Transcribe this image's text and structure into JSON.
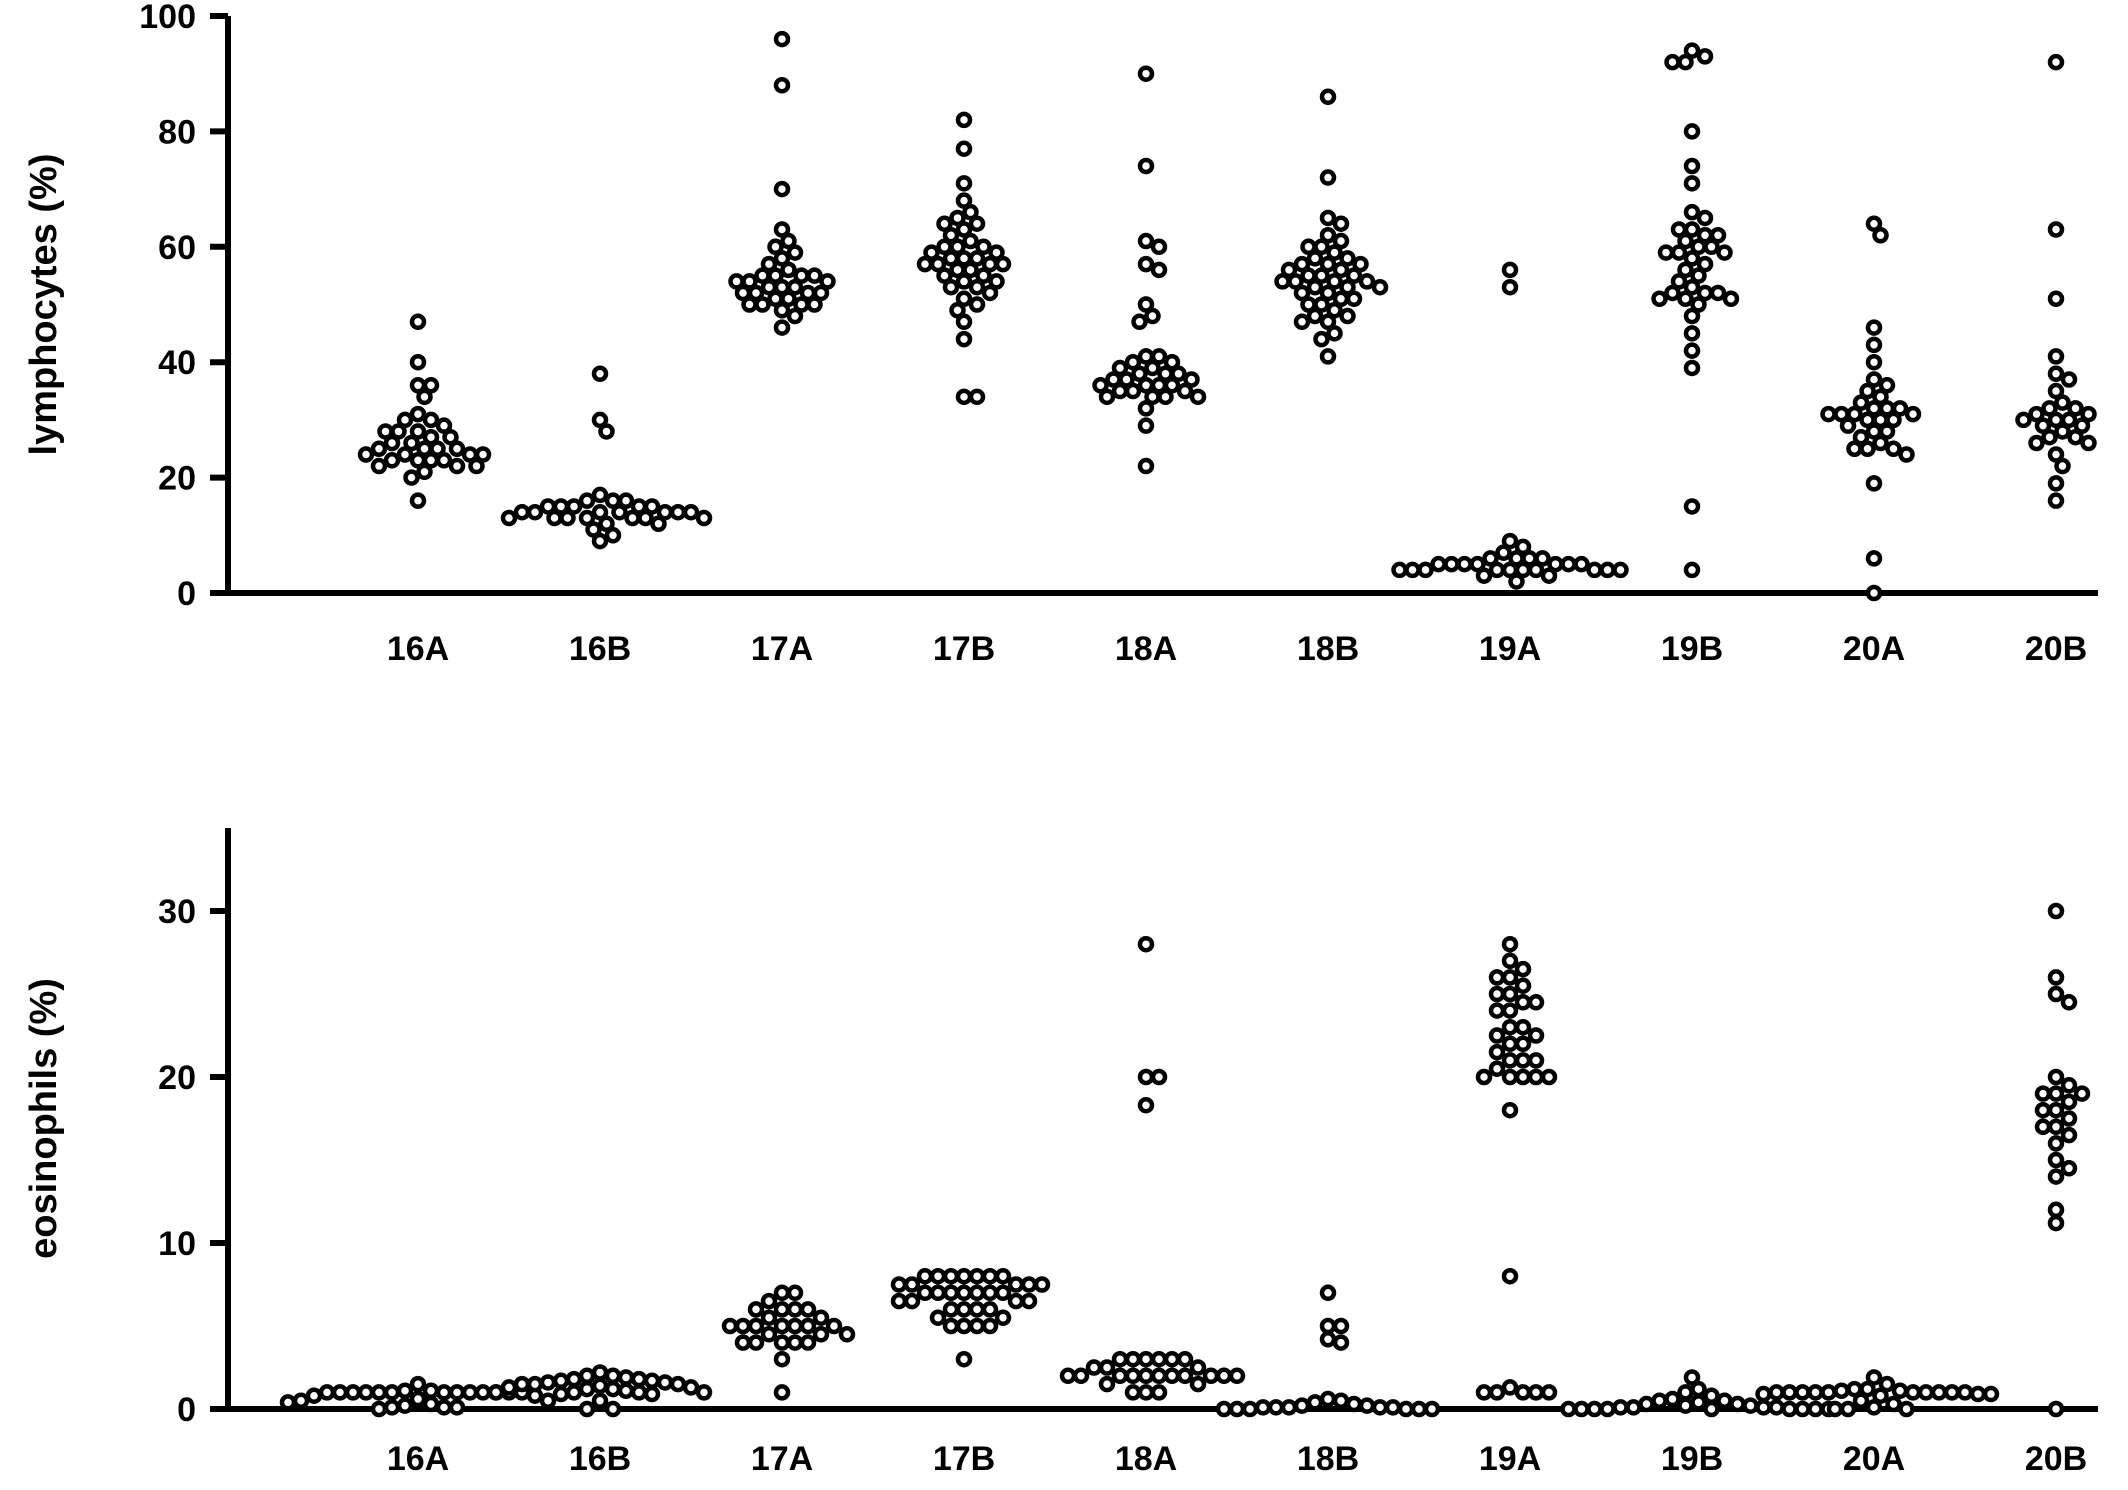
{
  "chart_data": [
    {
      "type": "scatter",
      "subtype": "column-scatter",
      "title": "",
      "xlabel": "",
      "ylabel": "lymphocytes (%)",
      "ylim": [
        0,
        100
      ],
      "yticks": [
        0,
        20,
        40,
        60,
        80,
        100
      ],
      "grid": false,
      "categories": [
        "16A",
        "16B",
        "17A",
        "17B",
        "18A",
        "18B",
        "19A",
        "19B",
        "20A",
        "20B"
      ],
      "series": [
        {
          "category": "16A",
          "values": [
            47,
            40,
            36,
            36,
            34,
            31,
            30,
            30,
            29,
            28,
            28,
            28,
            27,
            27,
            26,
            26,
            25,
            25,
            25,
            25,
            24,
            24,
            24,
            24,
            23,
            23,
            23,
            23,
            22,
            22,
            22,
            21,
            20,
            16
          ]
        },
        {
          "category": "16B",
          "values": [
            38,
            30,
            28,
            17,
            16,
            16,
            16,
            15,
            15,
            15,
            15,
            15,
            14,
            14,
            14,
            14,
            14,
            14,
            14,
            13,
            13,
            13,
            13,
            13,
            13,
            13,
            12,
            12,
            11,
            10,
            9
          ]
        },
        {
          "category": "17A",
          "values": [
            96,
            88,
            70,
            63,
            61,
            60,
            59,
            58,
            57,
            56,
            55,
            55,
            55,
            55,
            54,
            54,
            54,
            53,
            53,
            53,
            52,
            52,
            52,
            52,
            51,
            51,
            50,
            50,
            50,
            50,
            49,
            48,
            46
          ]
        },
        {
          "category": "17B",
          "values": [
            82,
            77,
            71,
            68,
            66,
            65,
            64,
            64,
            63,
            62,
            61,
            60,
            60,
            60,
            59,
            59,
            58,
            58,
            58,
            57,
            57,
            57,
            57,
            56,
            56,
            55,
            55,
            54,
            54,
            53,
            53,
            52,
            51,
            50,
            49,
            47,
            44,
            34,
            34
          ]
        },
        {
          "category": "18A",
          "values": [
            90,
            74,
            61,
            60,
            57,
            56,
            50,
            48,
            47,
            41,
            41,
            40,
            40,
            39,
            39,
            38,
            38,
            38,
            37,
            37,
            37,
            36,
            36,
            36,
            36,
            35,
            35,
            35,
            34,
            34,
            34,
            34,
            32,
            29,
            22
          ]
        },
        {
          "category": "18B",
          "values": [
            86,
            72,
            65,
            64,
            62,
            61,
            60,
            60,
            59,
            58,
            58,
            57,
            57,
            57,
            56,
            56,
            55,
            55,
            55,
            54,
            54,
            54,
            54,
            53,
            53,
            53,
            52,
            52,
            51,
            51,
            50,
            50,
            49,
            48,
            48,
            47,
            47,
            45,
            44,
            41
          ]
        },
        {
          "category": "19A",
          "values": [
            56,
            53,
            9,
            8,
            7,
            6,
            6,
            6,
            6,
            5,
            5,
            5,
            5,
            5,
            5,
            5,
            4,
            4,
            4,
            4,
            4,
            4,
            4,
            4,
            4,
            4,
            3,
            3,
            2
          ]
        },
        {
          "category": "19B",
          "values": [
            93,
            94,
            92,
            92,
            80,
            74,
            71,
            66,
            65,
            63,
            63,
            62,
            62,
            61,
            60,
            60,
            59,
            59,
            59,
            58,
            57,
            56,
            55,
            54,
            53,
            52,
            52,
            52,
            51,
            51,
            51,
            50,
            48,
            45,
            42,
            39,
            15,
            4
          ]
        },
        {
          "category": "20A",
          "values": [
            64,
            62,
            46,
            43,
            40,
            37,
            36,
            35,
            34,
            33,
            32,
            32,
            32,
            31,
            31,
            31,
            31,
            30,
            30,
            30,
            29,
            28,
            28,
            27,
            26,
            25,
            25,
            25,
            24,
            19,
            6,
            0
          ]
        },
        {
          "category": "20B",
          "values": [
            92,
            63,
            51,
            41,
            38,
            37,
            35,
            33,
            32,
            32,
            31,
            31,
            30,
            30,
            30,
            29,
            29,
            28,
            27,
            27,
            26,
            26,
            24,
            22,
            19,
            16
          ]
        }
      ]
    },
    {
      "type": "scatter",
      "subtype": "column-scatter",
      "title": "",
      "xlabel": "",
      "ylabel": "eosinophils (%)",
      "ylim": [
        0,
        35
      ],
      "yticks": [
        0,
        10,
        20,
        30
      ],
      "grid": false,
      "categories": [
        "16A",
        "16B",
        "17A",
        "17B",
        "18A",
        "18B",
        "19A",
        "19B",
        "20A",
        "20B"
      ],
      "series": [
        {
          "category": "16A",
          "values": [
            1.5,
            1.1,
            1.1,
            1.0,
            1.0,
            1.0,
            1.0,
            1.0,
            1.0,
            1.0,
            1.0,
            1.0,
            1.0,
            1.0,
            1.0,
            1.0,
            0.8,
            0.8,
            0.6,
            0.5,
            0.5,
            0.4,
            0.3,
            0.2,
            0.1,
            0.1,
            0.1,
            0.0
          ]
        },
        {
          "category": "16B",
          "values": [
            2.2,
            2.0,
            2.0,
            1.9,
            1.8,
            1.8,
            1.7,
            1.7,
            1.6,
            1.6,
            1.5,
            1.5,
            1.5,
            1.4,
            1.3,
            1.3,
            1.2,
            1.2,
            1.1,
            1.0,
            1.0,
            1.0,
            1.0,
            0.9,
            0.9,
            0.5,
            0.0,
            0.0
          ]
        },
        {
          "category": "17A",
          "values": [
            7,
            7,
            6.5,
            6,
            6,
            6,
            6,
            5.5,
            5.5,
            5,
            5,
            5,
            5,
            5,
            5,
            5,
            4.5,
            4.5,
            4.5,
            4,
            4,
            4,
            4,
            4,
            3,
            1
          ]
        },
        {
          "category": "17B",
          "values": [
            8,
            8,
            8,
            8,
            8,
            8,
            8,
            7.5,
            7.5,
            7.5,
            7.5,
            7.5,
            7,
            7,
            7,
            7,
            7,
            7,
            7,
            6.5,
            6.5,
            6.5,
            6.5,
            6,
            6,
            6,
            6,
            5.5,
            5.5,
            5,
            5,
            5,
            5,
            3
          ]
        },
        {
          "category": "18A",
          "values": [
            28,
            20,
            20,
            18.3,
            3,
            3,
            3,
            3,
            3,
            3,
            2.5,
            2.5,
            2.5,
            2,
            2,
            2,
            2,
            2,
            2,
            2,
            2,
            2,
            2,
            2,
            1.5,
            1.5,
            1,
            1,
            1
          ]
        },
        {
          "category": "18B",
          "values": [
            7,
            5,
            5,
            4.2,
            4,
            0.6,
            0.5,
            0.4,
            0.3,
            0.2,
            0.2,
            0.1,
            0.1,
            0.1,
            0.1,
            0.1,
            0.0,
            0.0,
            0.0,
            0.0,
            0.0,
            0.0
          ]
        },
        {
          "category": "19A",
          "values": [
            28,
            27,
            26.5,
            26,
            26,
            25.5,
            25,
            25,
            24.5,
            24.5,
            24,
            24,
            23,
            23,
            22.5,
            22.5,
            22,
            22,
            21.5,
            21,
            21,
            21,
            20.5,
            20,
            20,
            20,
            20,
            20,
            18,
            8,
            1.3,
            1,
            1,
            1,
            1,
            1
          ]
        },
        {
          "category": "19B",
          "values": [
            1.9,
            1.2,
            1.0,
            0.8,
            0.6,
            0.5,
            0.5,
            0.4,
            0.3,
            0.3,
            0.2,
            0.2,
            0.1,
            0.1,
            0.1,
            0.1,
            0.0,
            0.0,
            0.0,
            0.0,
            0.0,
            0.0,
            0.0,
            0.0,
            0.0
          ]
        },
        {
          "category": "20A",
          "values": [
            1.9,
            1.5,
            1.2,
            1.2,
            1.1,
            1.1,
            1.0,
            1.0,
            1.0,
            1.0,
            1.0,
            1.0,
            1.0,
            1.0,
            1.0,
            1.0,
            0.9,
            0.9,
            0.9,
            0.8,
            0.5,
            0.3,
            0.1,
            0.0,
            0.0,
            0.0
          ]
        },
        {
          "category": "20B",
          "values": [
            30,
            26,
            25,
            24.5,
            20,
            19.5,
            19,
            19,
            19,
            18.5,
            18,
            18,
            17.5,
            17,
            17,
            16.5,
            16,
            15,
            14.5,
            14,
            12,
            11.2,
            0
          ]
        }
      ]
    }
  ]
}
